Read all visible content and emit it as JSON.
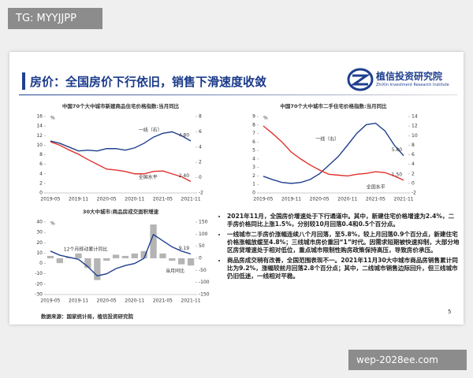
{
  "watermark_top": "TG: MYYJJPP",
  "watermark_bottom": "wep-2028ee.com",
  "header": {
    "title": "房价：全国房价下行依旧，销售下滑速度收敛",
    "logo_name": "植信投资研究院",
    "logo_english": "ZhiXin Investment Research Institute"
  },
  "chart_data": [
    {
      "type": "line",
      "title": "中国70个大中城市新建商品住宅价格指数:当月同比",
      "y_unit": "%",
      "categories": [
        "2019-05",
        null,
        null,
        "2019-11",
        null,
        null,
        "2020-05",
        null,
        null,
        "2020-11",
        null,
        null,
        "2021-05",
        null,
        null,
        "2021-11"
      ],
      "ylim": [
        0,
        16
      ],
      "yticks": [
        0,
        2,
        4,
        6,
        8,
        10,
        12,
        14,
        16
      ],
      "y2lim": [
        -2,
        8
      ],
      "y2ticks": [
        -2,
        0,
        2,
        4,
        6,
        8
      ],
      "series": [
        {
          "name": "一线（右）",
          "color": "#1f3f8f",
          "axis": "y2",
          "values": [
            4.8,
            4.5,
            4.0,
            3.5,
            3.6,
            3.5,
            3.8,
            3.8,
            3.6,
            3.9,
            4.5,
            5.3,
            5.8,
            6.0,
            5.5,
            4.8
          ],
          "end_label": "4.80"
        },
        {
          "name": "全国水平",
          "color": "#e0302c",
          "values": [
            10.7,
            10.0,
            9.0,
            8.1,
            7.0,
            6.0,
            5.0,
            4.8,
            4.5,
            4.0,
            4.0,
            4.5,
            4.6,
            4.0,
            3.4,
            2.4
          ],
          "end_label": "2.40"
        }
      ]
    },
    {
      "type": "line",
      "title": "中国70个大中城市二手住宅价格指数:当月同比",
      "y_unit": "%",
      "categories": [
        "2019-05",
        null,
        null,
        "2019-11",
        null,
        null,
        "2020-05",
        null,
        null,
        "2020-11",
        null,
        null,
        "2021-05",
        null,
        null,
        "2021-11"
      ],
      "ylim": [
        0,
        9
      ],
      "yticks": [
        0,
        1,
        2,
        3,
        4,
        5,
        6,
        7,
        8,
        9
      ],
      "y2lim": [
        -2,
        14
      ],
      "y2ticks": [
        -2,
        0,
        2,
        4,
        6,
        8,
        10,
        12,
        14
      ],
      "series": [
        {
          "name": "一线（右）",
          "color": "#1f3f8f",
          "axis": "y2",
          "values": [
            1.5,
            0.8,
            0.2,
            0.0,
            0.2,
            0.8,
            2.0,
            3.8,
            5.6,
            8.0,
            10.5,
            12.3,
            12.6,
            11.0,
            8.0,
            5.8
          ],
          "end_label": "5.80"
        },
        {
          "name": "全国水平",
          "color": "#e0302c",
          "values": [
            7.9,
            7.0,
            6.0,
            4.8,
            4.0,
            3.3,
            2.7,
            2.2,
            2.1,
            2.0,
            2.2,
            2.3,
            2.5,
            2.4,
            2.0,
            1.5
          ],
          "end_label": "1.50"
        }
      ]
    },
    {
      "type": "line",
      "title": "30大中城市:商品房成交面积增速",
      "y_unit": "%",
      "categories": [
        "2019-05",
        null,
        null,
        "2019-11",
        null,
        null,
        "2020-05",
        null,
        null,
        "2020-11",
        null,
        null,
        "2021-05",
        null,
        null,
        "2021-11"
      ],
      "ylim": [
        -30,
        40
      ],
      "yticks": [
        -30,
        -20,
        -10,
        0,
        10,
        20,
        30,
        40
      ],
      "y2lim": [
        -150,
        150
      ],
      "y2ticks": [
        -150,
        -100,
        -50,
        0,
        50,
        100,
        150
      ],
      "series": [
        {
          "name": "当月同比",
          "type": "bar",
          "color": "#b4b4b4",
          "axis": "y2",
          "values": [
            10,
            -20,
            5,
            20,
            -40,
            -90,
            -10,
            15,
            10,
            20,
            30,
            140,
            20,
            -10,
            -25,
            -30
          ]
        },
        {
          "name": "12个月移动累计同比",
          "color": "#1f3f8f",
          "values": [
            12,
            8,
            6,
            4,
            -3,
            -12,
            -10,
            -5,
            -2,
            0,
            5,
            28,
            22,
            16,
            12,
            9.19
          ],
          "end_label": "9.19"
        }
      ]
    }
  ],
  "bullets": [
    "2021年11月，全国房价增速处于下行通道中。其中，新建住宅价格增速为2.4%，二手房价格同比上涨1.5%，分别较10月回落0.4和0.5个百分点。",
    "一线城市二手房价涨幅连续八个月回落，至5.8%，较上月回落0.9个百分点，新建住宅价格涨幅放缓至4.8%；三线城市房价重回“1”时代。因需求短期被快速抑制，大部分地区房贷增速处于相对低位，重点城市限制性购房政策保持高压，导致房价承压。",
    "商品房成交稍有改善，全国范围表现不一。2021年11月30大中城市商品房销售累计同比为9.2%，涨幅较前月回落2.8个百分点；其中，二线城市销售边际回升，但三线城市仍旧低迷，一线相对平稳。"
  ],
  "source": "数据来源：国家统计局，植信投资研究院",
  "page_number": "5"
}
